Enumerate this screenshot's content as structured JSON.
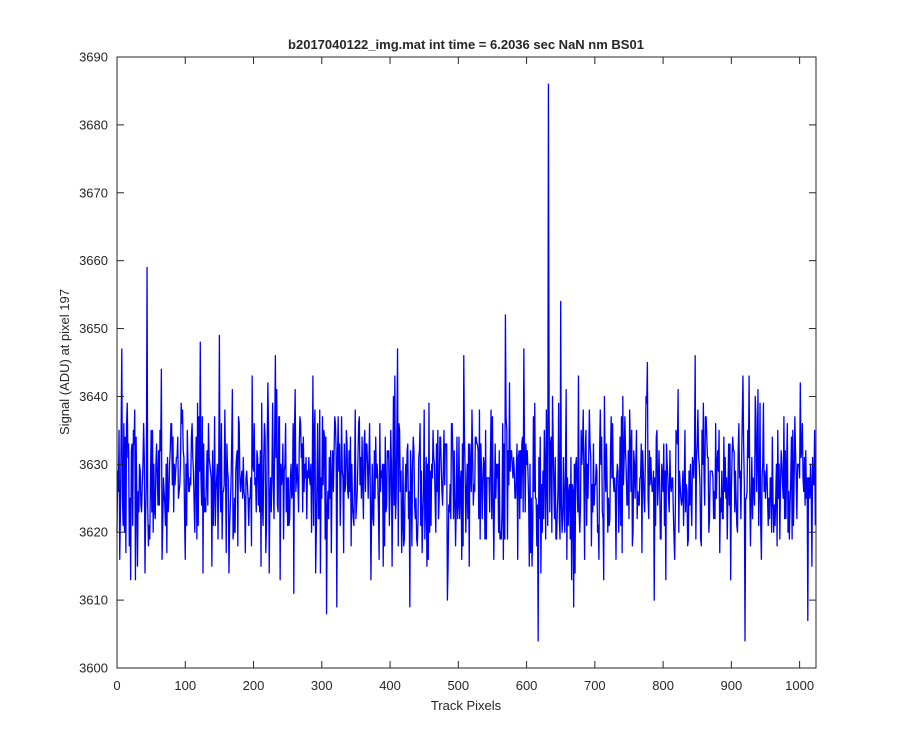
{
  "chart_data": {
    "type": "line",
    "title": "b2017040122_img.mat int time = 6.2036 sec  NaN nm BS01",
    "xlabel": "Track Pixels",
    "ylabel": "Signal (ADU) at pixel 197",
    "xlim": [
      0,
      1024
    ],
    "ylim": [
      3600,
      3690
    ],
    "xticks": [
      0,
      100,
      200,
      300,
      400,
      500,
      600,
      700,
      800,
      900,
      1000
    ],
    "yticks": [
      3600,
      3610,
      3620,
      3630,
      3640,
      3650,
      3660,
      3670,
      3680,
      3690
    ],
    "grid": false,
    "series_color": "#0000ff",
    "n_points": 1024,
    "noise_mean": 3628,
    "noise_range": [
      3613,
      3645
    ],
    "notable_points": [
      {
        "x": 1,
        "y": 3629
      },
      {
        "x": 7,
        "y": 3647
      },
      {
        "x": 13,
        "y": 3617
      },
      {
        "x": 20,
        "y": 3613
      },
      {
        "x": 30,
        "y": 3615
      },
      {
        "x": 44,
        "y": 3659
      },
      {
        "x": 73,
        "y": 3617
      },
      {
        "x": 122,
        "y": 3648
      },
      {
        "x": 126,
        "y": 3614
      },
      {
        "x": 150,
        "y": 3649
      },
      {
        "x": 223,
        "y": 3614
      },
      {
        "x": 232,
        "y": 3646
      },
      {
        "x": 259,
        "y": 3611
      },
      {
        "x": 307,
        "y": 3608
      },
      {
        "x": 322,
        "y": 3609
      },
      {
        "x": 411,
        "y": 3647
      },
      {
        "x": 429,
        "y": 3609
      },
      {
        "x": 484,
        "y": 3610
      },
      {
        "x": 508,
        "y": 3646
      },
      {
        "x": 569,
        "y": 3652
      },
      {
        "x": 596,
        "y": 3647
      },
      {
        "x": 608,
        "y": 3615
      },
      {
        "x": 617,
        "y": 3604
      },
      {
        "x": 632,
        "y": 3686
      },
      {
        "x": 650,
        "y": 3654
      },
      {
        "x": 669,
        "y": 3609
      },
      {
        "x": 787,
        "y": 3610
      },
      {
        "x": 847,
        "y": 3646
      },
      {
        "x": 868,
        "y": 3622
      },
      {
        "x": 920,
        "y": 3604
      },
      {
        "x": 959,
        "y": 3620
      },
      {
        "x": 1005,
        "y": 3628
      },
      {
        "x": 1012,
        "y": 3607
      },
      {
        "x": 1018,
        "y": 3615
      },
      {
        "x": 1023,
        "y": 3621
      }
    ]
  }
}
